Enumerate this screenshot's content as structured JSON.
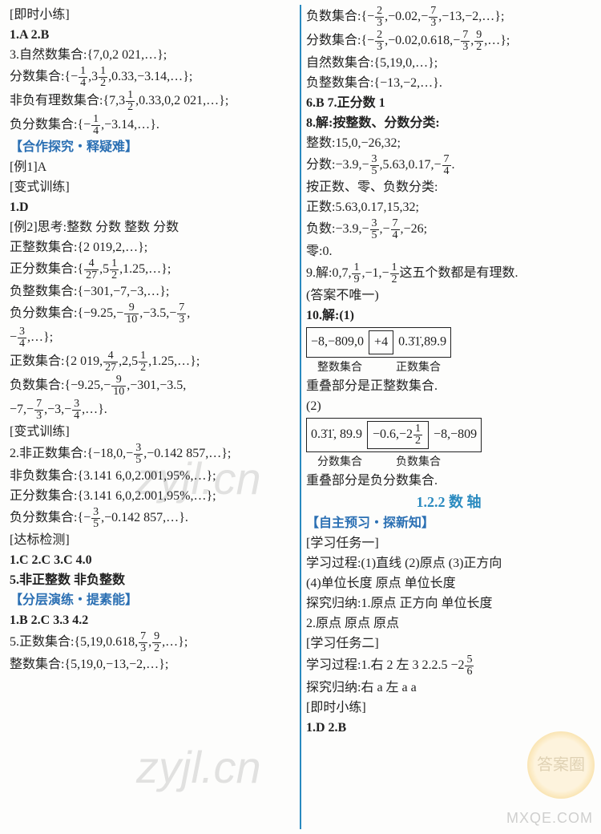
{
  "left": {
    "l1": "[即时小练]",
    "l2": "1.A  2.B",
    "l3a": "3.自然数集合:{7,0,2 021,…};",
    "l4a": "  分数集合:",
    "l4b": ",0.33,−3.14,…",
    "l5a": "  非负有理数集合:",
    "l5b": ",0.33,0,2 021,…",
    "l6a": "  负分数集合:",
    "l6b": ",−3.14,…",
    "h1": "【合作探究・释疑难】",
    "l8": "[例1]A",
    "l9": "[变式训练]",
    "l10": "1.D",
    "l11": "[例2]思考:整数  分数  整数  分数",
    "l12": "    正整数集合:{2 019,2,…};",
    "l13a": "    正分数集合:",
    "l13b": ",1.25,…",
    "l14": "    负整数集合:{−301,−7,−3,…};",
    "l15a": "    负分数集合:",
    "l15b": ",−3.5,",
    "l16a": "    ",
    "l16b": ",…",
    "l17a": "    正数集合:",
    "l17b": ",1.25,…",
    "l18a": "    负数集合:",
    "l18b": ",−301,−3.5,",
    "l19a": "   −7,",
    "l19b": ",−3,",
    "l19c": ",…",
    "l20": "[变式训练]",
    "l21a": "2.非正数集合:",
    "l21b": ",−0.142 857,…",
    "l22": "  非负数集合:{3.141 6,0,2.001,95%,…};",
    "l23": "  正分数集合:{3.141 6,0,2.001,95%,…};",
    "l24a": "  负分数集合:",
    "l24b": ",−0.142 857,…",
    "l25": "[达标检测]",
    "l26": "1.C  2.C  3.C  4.0",
    "l27": "5.非正整数  非负整数",
    "h2": "【分层演练・提素能】",
    "l29": "1.B  2.C  3.3  4.2",
    "l30a": "5.正数集合:",
    "l30b": ",…",
    "l31": "  整数集合:{5,19,0,−13,−2,…};"
  },
  "right": {
    "r1a": "负数集合:",
    "r1b": ",−0.02,",
    "r1c": ",−13,−2,…",
    "r2a": "分数集合:",
    "r2b": ",−0.02,0.618,",
    "r2c": ",…",
    "r3": "自然数集合:{5,19,0,…};",
    "r4": "负整数集合:{−13,−2,…}.",
    "r5": "6.B  7.正分数  1",
    "r6": "8.解:按整数、分数分类:",
    "r7": "  整数:15,0,−26,32;",
    "r8a": "  分数:−3.9,",
    "r8b": ",5.63,0.17,",
    "r9": "  按正数、零、负数分类:",
    "r10": "  正数:5.63,0.17,15,32;",
    "r11a": "  负数:−3.9,",
    "r11b": ",−26;",
    "r12": "  零:0.",
    "r13a": "9.解:0,7,",
    "r13b": ",−1,",
    "r13c": "这五个数都是有理数.",
    "r14": "  (答案不唯一)",
    "r15": "10.解:(1)",
    "box1a": "−8,−809,0",
    "box1b": "+4",
    "box1c": "0.3̇1̇,89.9",
    "r16a": "整数集合",
    "r16b": "正数集合",
    "r17": "重叠部分是正整数集合.",
    "r18": "(2)",
    "box2a": "0.3̇1̇, 89.9",
    "box2b": "−0.6,−2½",
    "box2c": "−8,−809",
    "r19a": "分数集合",
    "r19b": "负数集合",
    "r20": "重叠部分是负分数集合.",
    "title2": "1.2.2  数  轴",
    "h3": "【自主预习・探新知】",
    "r22": "[学习任务一]",
    "r23": "学习过程:(1)直线  (2)原点  (3)正方向",
    "r24": "(4)单位长度  原点  单位长度",
    "r25": "探究归纳:1.原点  正方向  单位长度",
    "r26": "2.原点  原点  原点",
    "r27": "[学习任务二]",
    "r28a": "学习过程:1.右  2  左  3  2.2.5  −2",
    "r29": "探究归纳:右  a  左  a  a",
    "r30": "[即时小练]",
    "r31": "1.D  2.B"
  },
  "fracs": {
    "m1o4": {
      "neg": true,
      "n": "1",
      "d": "4"
    },
    "p3_1o2": {
      "whole": "3",
      "n": "1",
      "d": "2"
    },
    "p7_3_1o2": {
      "whole": "7,3",
      "n": "1",
      "d": "2"
    },
    "p4o27": {
      "n": "4",
      "d": "27"
    },
    "p5_1o2": {
      "whole": "5",
      "n": "1",
      "d": "2"
    },
    "m9o10": {
      "neg": true,
      "n": "9",
      "d": "10"
    },
    "m7o3": {
      "neg": true,
      "n": "7",
      "d": "3"
    },
    "m3o4": {
      "neg": true,
      "n": "3",
      "d": "4"
    },
    "p2019_4o27": {
      "whole": "2 019,",
      "n": "4",
      "d": "27"
    },
    "p2_5_1o2": {
      "whole": ",2,5",
      "n": "1",
      "d": "2"
    },
    "m3o5": {
      "neg": true,
      "n": "3",
      "d": "5"
    },
    "m18_0_m3o5": {
      "whole": "−18,0,",
      "neg": true,
      "n": "3",
      "d": "5"
    },
    "p5190618_7o3": {
      "whole": "5,19,0.618,",
      "n": "7",
      "d": "3"
    },
    "p9o2_pos": {
      "whole": ",",
      "n": "9",
      "d": "2"
    },
    "m2o3": {
      "neg": true,
      "n": "2",
      "d": "3"
    },
    "p9o2": {
      "n": "9",
      "d": "2"
    },
    "m7o4": {
      "neg": true,
      "n": "7",
      "d": "4"
    },
    "p1o9": {
      "n": "1",
      "d": "9"
    },
    "m1o2": {
      "neg": true,
      "n": "1",
      "d": "2"
    },
    "p5o6": {
      "n": "5",
      "d": "6"
    }
  },
  "style": {
    "blue": "#2a6fb3",
    "cyan": "#2a8abf"
  }
}
